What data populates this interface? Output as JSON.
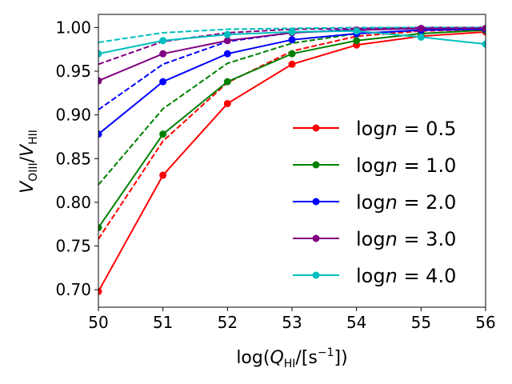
{
  "chart_data": {
    "type": "line",
    "title": "",
    "xlabel": "log(Q_HI/[s^-1])",
    "ylabel": "V_OIII/V_HII",
    "xlim": [
      50,
      56
    ],
    "ylim": [
      0.68,
      1.015
    ],
    "xticks": [
      "50",
      "51",
      "52",
      "53",
      "54",
      "55",
      "56"
    ],
    "yticks": [
      "0.70",
      "0.75",
      "0.80",
      "0.85",
      "0.90",
      "0.95",
      "1.00"
    ],
    "x": [
      50,
      51,
      52,
      53,
      54,
      55,
      56
    ],
    "legend_position": "lower-right",
    "series": [
      {
        "name": "logn = 0.5",
        "label": "logn = 0.5",
        "color": "#ff0000",
        "style": "solid",
        "marker": true,
        "values": [
          0.698,
          0.831,
          0.913,
          0.958,
          0.98,
          0.99,
          0.995
        ]
      },
      {
        "name": "logn = 1.0",
        "label": "logn = 1.0",
        "color": "#008000",
        "style": "solid",
        "marker": true,
        "values": [
          0.771,
          0.878,
          0.938,
          0.97,
          0.985,
          0.993,
          0.997
        ]
      },
      {
        "name": "logn = 2.0",
        "label": "logn = 2.0",
        "color": "#0000ff",
        "style": "solid",
        "marker": true,
        "values": [
          0.878,
          0.938,
          0.97,
          0.986,
          0.993,
          0.997,
          0.998
        ]
      },
      {
        "name": "logn = 3.0",
        "label": "logn = 3.0",
        "color": "#800080",
        "style": "solid",
        "marker": true,
        "values": [
          0.939,
          0.97,
          0.985,
          0.994,
          0.997,
          0.999,
          0.999
        ]
      },
      {
        "name": "logn = 4.0",
        "label": "logn = 4.0",
        "color": "#00bfbf",
        "style": "solid",
        "marker": true,
        "values": [
          0.97,
          0.985,
          0.992,
          0.995,
          0.996,
          0.989,
          0.981
        ]
      },
      {
        "name": "logn = 0.5 (dashed)",
        "color": "#ff0000",
        "style": "dashed",
        "marker": false,
        "values": [
          0.758,
          0.87,
          0.937,
          0.973,
          0.99,
          0.996,
          0.998
        ]
      },
      {
        "name": "logn = 1.0 (dashed)",
        "color": "#008000",
        "style": "dashed",
        "marker": false,
        "values": [
          0.82,
          0.907,
          0.959,
          0.982,
          0.993,
          0.997,
          0.999
        ]
      },
      {
        "name": "logn = 2.0 (dashed)",
        "color": "#0000ff",
        "style": "dashed",
        "marker": false,
        "values": [
          0.906,
          0.958,
          0.984,
          0.994,
          0.998,
          0.999,
          1.0
        ]
      },
      {
        "name": "logn = 3.0 (dashed)",
        "color": "#800080",
        "style": "dashed",
        "marker": false,
        "values": [
          0.958,
          0.984,
          0.994,
          0.998,
          0.999,
          1.0,
          1.0
        ]
      },
      {
        "name": "logn = 4.0 (dashed)",
        "color": "#00bfbf",
        "style": "dashed",
        "marker": false,
        "values": [
          0.983,
          0.994,
          0.998,
          0.999,
          1.0,
          1.0,
          1.0
        ]
      }
    ]
  }
}
